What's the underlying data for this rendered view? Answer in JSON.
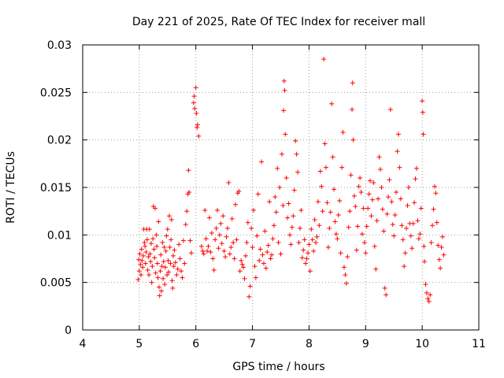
{
  "chart_data": {
    "type": "scatter",
    "title": "Day 221 of 2025, Rate Of TEC Index for receiver mall",
    "xlabel": "GPS time / hours",
    "ylabel": "ROTI / TECUs",
    "xlim": [
      4,
      11
    ],
    "ylim": [
      0,
      0.03
    ],
    "xticks": [
      4,
      5,
      6,
      7,
      8,
      9,
      10,
      11
    ],
    "xtick_labels": [
      "4",
      "5",
      "6",
      "7",
      "8",
      "9",
      "10",
      "11"
    ],
    "yticks": [
      0,
      0.005,
      0.01,
      0.015,
      0.02,
      0.025,
      0.03
    ],
    "ytick_labels": [
      "0",
      "0.005",
      "0.01",
      "0.015",
      "0.02",
      "0.025",
      "0.03"
    ],
    "grid": true,
    "marker": "+",
    "color": "#ff0000",
    "series": [
      {
        "name": "ROTI",
        "points": [
          [
            4.98,
            0.0053
          ],
          [
            4.99,
            0.0074
          ],
          [
            5.0,
            0.0062
          ],
          [
            5.01,
            0.008
          ],
          [
            5.02,
            0.0069
          ],
          [
            5.03,
            0.0058
          ],
          [
            5.04,
            0.0085
          ],
          [
            5.05,
            0.0073
          ],
          [
            5.06,
            0.0066
          ],
          [
            5.07,
            0.0078
          ],
          [
            5.08,
            0.0106
          ],
          [
            5.09,
            0.0092
          ],
          [
            5.1,
            0.0088
          ],
          [
            5.11,
            0.007
          ],
          [
            5.12,
            0.0082
          ],
          [
            5.13,
            0.0106
          ],
          [
            5.14,
            0.0095
          ],
          [
            5.15,
            0.0063
          ],
          [
            5.16,
            0.0077
          ],
          [
            5.17,
            0.0058
          ],
          [
            5.18,
            0.0106
          ],
          [
            5.19,
            0.008
          ],
          [
            5.2,
            0.0072
          ],
          [
            5.21,
            0.0091
          ],
          [
            5.22,
            0.005
          ],
          [
            5.23,
            0.0067
          ],
          [
            5.24,
            0.0096
          ],
          [
            5.25,
            0.013
          ],
          [
            5.26,
            0.0085
          ],
          [
            5.27,
            0.0076
          ],
          [
            5.28,
            0.0128
          ],
          [
            5.29,
            0.006
          ],
          [
            5.3,
            0.01
          ],
          [
            5.31,
            0.0088
          ],
          [
            5.32,
            0.007
          ],
          [
            5.33,
            0.0055
          ],
          [
            5.34,
            0.0114
          ],
          [
            5.35,
            0.0045
          ],
          [
            5.36,
            0.0036
          ],
          [
            5.37,
            0.0062
          ],
          [
            5.38,
            0.0079
          ],
          [
            5.39,
            0.0041
          ],
          [
            5.4,
            0.0067
          ],
          [
            5.41,
            0.0092
          ],
          [
            5.42,
            0.0054
          ],
          [
            5.43,
            0.0072
          ],
          [
            5.44,
            0.0087
          ],
          [
            5.45,
            0.0048
          ],
          [
            5.46,
            0.0066
          ],
          [
            5.47,
            0.0083
          ],
          [
            5.48,
            0.0099
          ],
          [
            5.49,
            0.0058
          ],
          [
            5.5,
            0.0106
          ],
          [
            5.51,
            0.0073
          ],
          [
            5.52,
            0.0061
          ],
          [
            5.53,
            0.012
          ],
          [
            5.54,
            0.0087
          ],
          [
            5.55,
            0.007
          ],
          [
            5.56,
            0.0095
          ],
          [
            5.57,
            0.0116
          ],
          [
            5.58,
            0.0052
          ],
          [
            5.59,
            0.0044
          ],
          [
            5.6,
            0.0078
          ],
          [
            5.61,
            0.0067
          ],
          [
            5.62,
            0.0084
          ],
          [
            5.64,
            0.0071
          ],
          [
            5.66,
            0.0058
          ],
          [
            5.68,
            0.0064
          ],
          [
            5.7,
            0.009
          ],
          [
            5.72,
            0.0075
          ],
          [
            5.74,
            0.0062
          ],
          [
            5.76,
            0.0055
          ],
          [
            5.78,
            0.0094
          ],
          [
            5.8,
            0.007
          ],
          [
            5.82,
            0.0111
          ],
          [
            5.84,
            0.0125
          ],
          [
            5.86,
            0.0143
          ],
          [
            5.87,
            0.0168
          ],
          [
            5.88,
            0.0145
          ],
          [
            5.9,
            0.0094
          ],
          [
            5.92,
            0.0081
          ],
          [
            5.96,
            0.0239
          ],
          [
            5.97,
            0.0246
          ],
          [
            5.98,
            0.0233
          ],
          [
            6.0,
            0.0255
          ],
          [
            6.01,
            0.0228
          ],
          [
            6.02,
            0.0213
          ],
          [
            6.03,
            0.0216
          ],
          [
            6.05,
            0.0204
          ],
          [
            6.1,
            0.0088
          ],
          [
            6.12,
            0.0083
          ],
          [
            6.14,
            0.008
          ],
          [
            6.16,
            0.0126
          ],
          [
            6.18,
            0.0096
          ],
          [
            6.2,
            0.0083
          ],
          [
            6.22,
            0.0088
          ],
          [
            6.24,
            0.0118
          ],
          [
            6.26,
            0.0082
          ],
          [
            6.28,
            0.0102
          ],
          [
            6.3,
            0.0075
          ],
          [
            6.32,
            0.0063
          ],
          [
            6.34,
            0.0095
          ],
          [
            6.36,
            0.0107
          ],
          [
            6.38,
            0.0126
          ],
          [
            6.4,
            0.0086
          ],
          [
            6.42,
            0.01
          ],
          [
            6.44,
            0.0112
          ],
          [
            6.46,
            0.0091
          ],
          [
            6.48,
            0.012
          ],
          [
            6.5,
            0.0083
          ],
          [
            6.52,
            0.0077
          ],
          [
            6.54,
            0.0098
          ],
          [
            6.56,
            0.0107
          ],
          [
            6.58,
            0.0155
          ],
          [
            6.6,
            0.008
          ],
          [
            6.62,
            0.0087
          ],
          [
            6.64,
            0.0117
          ],
          [
            6.66,
            0.0092
          ],
          [
            6.68,
            0.0075
          ],
          [
            6.7,
            0.0132
          ],
          [
            6.72,
            0.0095
          ],
          [
            6.74,
            0.0144
          ],
          [
            6.76,
            0.0146
          ],
          [
            6.78,
            0.0062
          ],
          [
            6.8,
            0.0073
          ],
          [
            6.82,
            0.0069
          ],
          [
            6.84,
            0.0066
          ],
          [
            6.86,
            0.0054
          ],
          [
            6.88,
            0.0078
          ],
          [
            6.9,
            0.0092
          ],
          [
            6.92,
            0.0113
          ],
          [
            6.94,
            0.0035
          ],
          [
            6.96,
            0.0046
          ],
          [
            6.98,
            0.0107
          ],
          [
            7.0,
            0.0087
          ],
          [
            7.02,
            0.0126
          ],
          [
            7.04,
            0.0067
          ],
          [
            7.06,
            0.0055
          ],
          [
            7.08,
            0.0099
          ],
          [
            7.1,
            0.0143
          ],
          [
            7.12,
            0.0073
          ],
          [
            7.14,
            0.0085
          ],
          [
            7.16,
            0.0177
          ],
          [
            7.18,
            0.0079
          ],
          [
            7.2,
            0.007
          ],
          [
            7.22,
            0.0104
          ],
          [
            7.24,
            0.0065
          ],
          [
            7.26,
            0.0082
          ],
          [
            7.28,
            0.0089
          ],
          [
            7.3,
            0.0135
          ],
          [
            7.32,
            0.0075
          ],
          [
            7.34,
            0.0079
          ],
          [
            7.36,
            0.0096
          ],
          [
            7.38,
            0.011
          ],
          [
            7.4,
            0.014
          ],
          [
            7.42,
            0.0124
          ],
          [
            7.44,
            0.017
          ],
          [
            7.46,
            0.0092
          ],
          [
            7.48,
            0.015
          ],
          [
            7.5,
            0.008
          ],
          [
            7.52,
            0.0185
          ],
          [
            7.54,
            0.0131
          ],
          [
            7.55,
            0.0231
          ],
          [
            7.56,
            0.0262
          ],
          [
            7.57,
            0.0252
          ],
          [
            7.58,
            0.0206
          ],
          [
            7.6,
            0.016
          ],
          [
            7.62,
            0.0118
          ],
          [
            7.64,
            0.0133
          ],
          [
            7.66,
            0.01
          ],
          [
            7.68,
            0.009
          ],
          [
            7.7,
            0.0108
          ],
          [
            7.72,
            0.012
          ],
          [
            7.74,
            0.0147
          ],
          [
            7.76,
            0.0199
          ],
          [
            7.78,
            0.0185
          ],
          [
            7.8,
            0.0166
          ],
          [
            7.82,
            0.0092
          ],
          [
            7.84,
            0.0107
          ],
          [
            7.86,
            0.0126
          ],
          [
            7.88,
            0.0076
          ],
          [
            7.9,
            0.0084
          ],
          [
            7.92,
            0.0095
          ],
          [
            7.94,
            0.007
          ],
          [
            7.96,
            0.0075
          ],
          [
            7.98,
            0.0081
          ],
          [
            8.0,
            0.009
          ],
          [
            8.02,
            0.0062
          ],
          [
            8.04,
            0.0106
          ],
          [
            8.06,
            0.0095
          ],
          [
            8.08,
            0.0083
          ],
          [
            8.1,
            0.0116
          ],
          [
            8.12,
            0.0092
          ],
          [
            8.14,
            0.0098
          ],
          [
            8.16,
            0.0135
          ],
          [
            8.18,
            0.011
          ],
          [
            8.2,
            0.0167
          ],
          [
            8.22,
            0.0151
          ],
          [
            8.24,
            0.0125
          ],
          [
            8.26,
            0.0285
          ],
          [
            8.28,
            0.0196
          ],
          [
            8.3,
            0.0171
          ],
          [
            8.32,
            0.0134
          ],
          [
            8.34,
            0.0087
          ],
          [
            8.36,
            0.0107
          ],
          [
            8.38,
            0.0124
          ],
          [
            8.4,
            0.0238
          ],
          [
            8.42,
            0.0182
          ],
          [
            8.44,
            0.0148
          ],
          [
            8.46,
            0.0114
          ],
          [
            8.48,
            0.0101
          ],
          [
            8.5,
            0.0096
          ],
          [
            8.52,
            0.0121
          ],
          [
            8.54,
            0.0136
          ],
          [
            8.56,
            0.0081
          ],
          [
            8.58,
            0.0171
          ],
          [
            8.6,
            0.0208
          ],
          [
            8.62,
            0.0066
          ],
          [
            8.64,
            0.0058
          ],
          [
            8.66,
            0.0049
          ],
          [
            8.68,
            0.0077
          ],
          [
            8.7,
            0.0108
          ],
          [
            8.72,
            0.0125
          ],
          [
            8.74,
            0.0163
          ],
          [
            8.76,
            0.0232
          ],
          [
            8.77,
            0.026
          ],
          [
            8.78,
            0.02
          ],
          [
            8.8,
            0.0141
          ],
          [
            8.82,
            0.013
          ],
          [
            8.84,
            0.0084
          ],
          [
            8.86,
            0.0109
          ],
          [
            8.88,
            0.0151
          ],
          [
            8.9,
            0.016
          ],
          [
            8.92,
            0.0145
          ],
          [
            8.94,
            0.0101
          ],
          [
            8.96,
            0.0128
          ],
          [
            8.98,
            0.0092
          ],
          [
            9.0,
            0.0081
          ],
          [
            9.02,
            0.0109
          ],
          [
            9.04,
            0.0128
          ],
          [
            9.06,
            0.0143
          ],
          [
            9.08,
            0.0157
          ],
          [
            9.1,
            0.012
          ],
          [
            9.12,
            0.0137
          ],
          [
            9.14,
            0.0155
          ],
          [
            9.16,
            0.0088
          ],
          [
            9.18,
            0.0064
          ],
          [
            9.2,
            0.0115
          ],
          [
            9.22,
            0.0138
          ],
          [
            9.24,
            0.0182
          ],
          [
            9.26,
            0.0169
          ],
          [
            9.28,
            0.015
          ],
          [
            9.3,
            0.0127
          ],
          [
            9.32,
            0.0104
          ],
          [
            9.34,
            0.0044
          ],
          [
            9.36,
            0.0037
          ],
          [
            9.38,
            0.0122
          ],
          [
            9.4,
            0.014
          ],
          [
            9.42,
            0.0158
          ],
          [
            9.44,
            0.0232
          ],
          [
            9.46,
            0.0135
          ],
          [
            9.48,
            0.0111
          ],
          [
            9.5,
            0.0099
          ],
          [
            9.52,
            0.0121
          ],
          [
            9.54,
            0.0145
          ],
          [
            9.56,
            0.0188
          ],
          [
            9.58,
            0.0206
          ],
          [
            9.6,
            0.0171
          ],
          [
            9.62,
            0.0138
          ],
          [
            9.64,
            0.011
          ],
          [
            9.66,
            0.0095
          ],
          [
            9.68,
            0.0067
          ],
          [
            9.7,
            0.0081
          ],
          [
            9.72,
            0.0107
          ],
          [
            9.74,
            0.0131
          ],
          [
            9.76,
            0.015
          ],
          [
            9.78,
            0.0112
          ],
          [
            9.8,
            0.0099
          ],
          [
            9.82,
            0.0086
          ],
          [
            9.84,
            0.0112
          ],
          [
            9.86,
            0.0134
          ],
          [
            9.88,
            0.0159
          ],
          [
            9.9,
            0.017
          ],
          [
            9.92,
            0.0115
          ],
          [
            9.94,
            0.0096
          ],
          [
            9.96,
            0.0101
          ],
          [
            9.98,
            0.0128
          ],
          [
            10.0,
            0.0241
          ],
          [
            10.01,
            0.0229
          ],
          [
            10.02,
            0.0206
          ],
          [
            10.03,
            0.0088
          ],
          [
            10.04,
            0.0072
          ],
          [
            10.06,
            0.0048
          ],
          [
            10.08,
            0.0039
          ],
          [
            10.1,
            0.0033
          ],
          [
            10.12,
            0.003
          ],
          [
            10.14,
            0.0037
          ],
          [
            10.16,
            0.0092
          ],
          [
            10.18,
            0.011
          ],
          [
            10.2,
            0.0127
          ],
          [
            10.22,
            0.0151
          ],
          [
            10.24,
            0.0144
          ],
          [
            10.26,
            0.0113
          ],
          [
            10.28,
            0.0089
          ],
          [
            10.3,
            0.0074
          ],
          [
            10.32,
            0.0065
          ],
          [
            10.34,
            0.0087
          ],
          [
            10.36,
            0.0098
          ],
          [
            10.38,
            0.0079
          ]
        ]
      }
    ]
  }
}
